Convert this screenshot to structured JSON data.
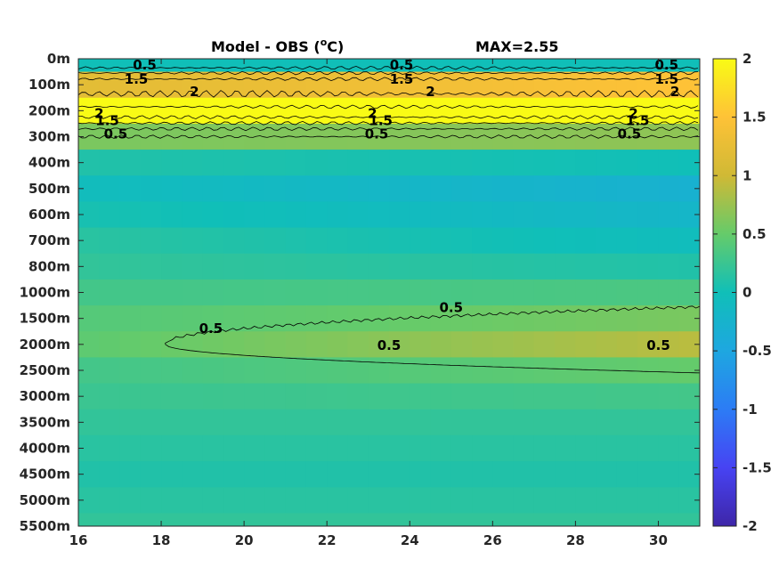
{
  "chart_data": {
    "type": "heatmap",
    "title": "Model - OBS (°C)",
    "title_parts": {
      "main": "Model - OBS (",
      "sup": "o",
      "unit": "C)"
    },
    "annotation": "MAX=2.55",
    "colormap": "parula",
    "clim": [
      -2,
      2
    ],
    "colorbar_ticks": [
      "2",
      "1.5",
      "1",
      "0.5",
      "0",
      "-0.5",
      "-1",
      "-1.5",
      "-2"
    ],
    "xlim": [
      16,
      31
    ],
    "x_ticks": [
      "16",
      "18",
      "20",
      "22",
      "24",
      "26",
      "28",
      "30"
    ],
    "y_ticks": [
      "0m",
      "100m",
      "200m",
      "300m",
      "400m",
      "500m",
      "600m",
      "700m",
      "800m",
      "1000m",
      "1500m",
      "2000m",
      "2500m",
      "3000m",
      "3500m",
      "4000m",
      "4500m",
      "5000m",
      "5500m"
    ],
    "grid": false,
    "legend": "colorbar-right",
    "depth_levels": [
      "0m",
      "100m",
      "200m",
      "300m",
      "400m",
      "500m",
      "600m",
      "700m",
      "800m",
      "1000m",
      "1500m",
      "2000m",
      "2500m",
      "3000m",
      "3500m",
      "4000m",
      "4500m",
      "5000m",
      "5500m"
    ],
    "values_start": [
      0.0,
      1.2,
      2.3,
      0.6,
      0.1,
      -0.05,
      0.05,
      0.15,
      0.2,
      0.3,
      0.4,
      0.45,
      0.3,
      0.25,
      0.2,
      0.15,
      0.1,
      0.15,
      0.2
    ],
    "values_end": [
      0.0,
      1.5,
      2.4,
      0.7,
      0.0,
      -0.3,
      -0.2,
      -0.05,
      0.1,
      0.35,
      0.6,
      0.9,
      0.5,
      0.3,
      0.2,
      0.15,
      0.1,
      0.15,
      0.2
    ],
    "contour_labels": [
      {
        "text": "0.5",
        "x": 17.6,
        "depth": "0m"
      },
      {
        "text": "1.5",
        "x": 17.4,
        "depth": "100m"
      },
      {
        "text": "2",
        "x": 18.8,
        "depth": "100m"
      },
      {
        "text": "2",
        "x": 16.5,
        "depth": "200m"
      },
      {
        "text": "1.5",
        "x": 16.7,
        "depth": "200m"
      },
      {
        "text": "0.5",
        "x": 16.9,
        "depth": "300m"
      },
      {
        "text": "0.5",
        "x": 23.8,
        "depth": "0m"
      },
      {
        "text": "1.5",
        "x": 23.8,
        "depth": "100m"
      },
      {
        "text": "2",
        "x": 24.5,
        "depth": "100m"
      },
      {
        "text": "2",
        "x": 23.1,
        "depth": "200m"
      },
      {
        "text": "1.5",
        "x": 23.3,
        "depth": "200m"
      },
      {
        "text": "0.5",
        "x": 23.2,
        "depth": "300m"
      },
      {
        "text": "0.5",
        "x": 30.2,
        "depth": "0m"
      },
      {
        "text": "1.5",
        "x": 30.2,
        "depth": "100m"
      },
      {
        "text": "2",
        "x": 30.4,
        "depth": "100m"
      },
      {
        "text": "2",
        "x": 29.4,
        "depth": "200m"
      },
      {
        "text": "1.5",
        "x": 29.5,
        "depth": "200m"
      },
      {
        "text": "0.5",
        "x": 29.3,
        "depth": "300m"
      },
      {
        "text": "0.5",
        "x": 25.0,
        "depth": "1500m"
      },
      {
        "text": "0.5",
        "x": 19.2,
        "depth": "2000m"
      },
      {
        "text": "0.5",
        "x": 23.5,
        "depth": "2500m"
      },
      {
        "text": "0.5",
        "x": 30.0,
        "depth": "2500m"
      }
    ]
  }
}
